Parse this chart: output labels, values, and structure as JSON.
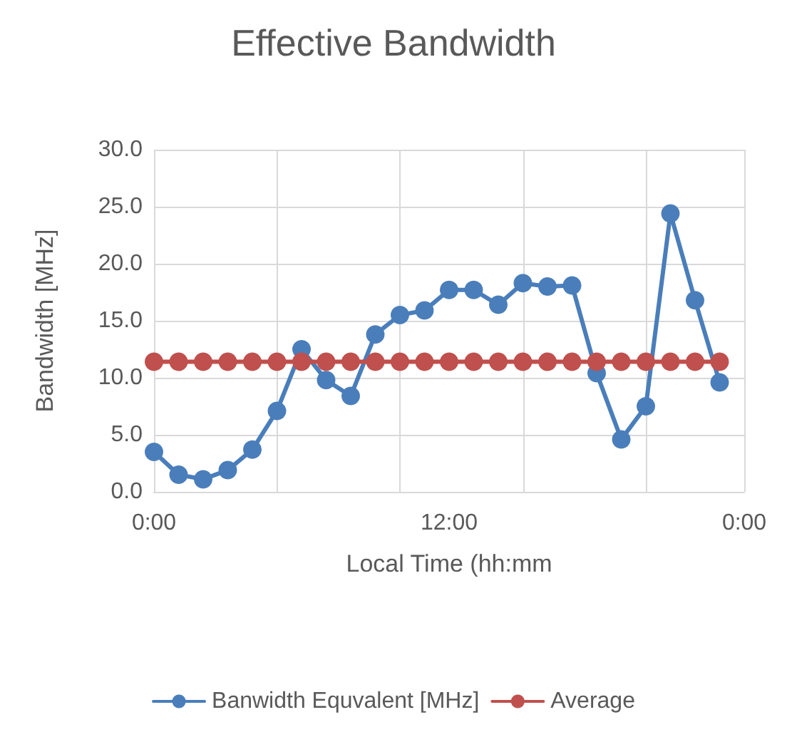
{
  "chart_data": {
    "type": "line",
    "title": "Effective Bandwidth",
    "xlabel": "Local Time (hh:mm",
    "ylabel": "Bandwidth [MHz]",
    "x": [
      0,
      1,
      2,
      3,
      4,
      5,
      6,
      7,
      8,
      9,
      10,
      11,
      12,
      13,
      14,
      15,
      16,
      17,
      18,
      19,
      20,
      21,
      22,
      23
    ],
    "series": [
      {
        "name": "Banwidth Equvalent [MHz]",
        "color": "#4a7ebb",
        "values": [
          3.5,
          1.5,
          1.1,
          1.9,
          3.7,
          7.1,
          12.5,
          9.8,
          8.4,
          13.8,
          15.5,
          15.9,
          17.7,
          17.7,
          16.4,
          18.3,
          18.0,
          18.1,
          10.4,
          4.6,
          7.5,
          24.4,
          16.8,
          9.6
        ]
      },
      {
        "name": "Average",
        "color": "#c0504d",
        "values": [
          11.4,
          11.4,
          11.4,
          11.4,
          11.4,
          11.4,
          11.4,
          11.4,
          11.4,
          11.4,
          11.4,
          11.4,
          11.4,
          11.4,
          11.4,
          11.4,
          11.4,
          11.4,
          11.4,
          11.4,
          11.4,
          11.4,
          11.4,
          11.4
        ]
      }
    ],
    "xlim": [
      0,
      24
    ],
    "xticks": [
      {
        "value": 0,
        "label": "0:00"
      },
      {
        "value": 12,
        "label": "12:00"
      },
      {
        "value": 24,
        "label": "0:00"
      }
    ],
    "ylim": [
      0,
      30
    ],
    "yticks": [
      {
        "value": 0,
        "label": "0.0"
      },
      {
        "value": 5,
        "label": "5.0"
      },
      {
        "value": 10,
        "label": "10.0"
      },
      {
        "value": 15,
        "label": "15.0"
      },
      {
        "value": 20,
        "label": "20.0"
      },
      {
        "value": 25,
        "label": "25.0"
      },
      {
        "value": 30,
        "label": "30.0"
      }
    ],
    "grid": true,
    "legend": "bottom",
    "marker": "circle",
    "line_style": "solid"
  }
}
